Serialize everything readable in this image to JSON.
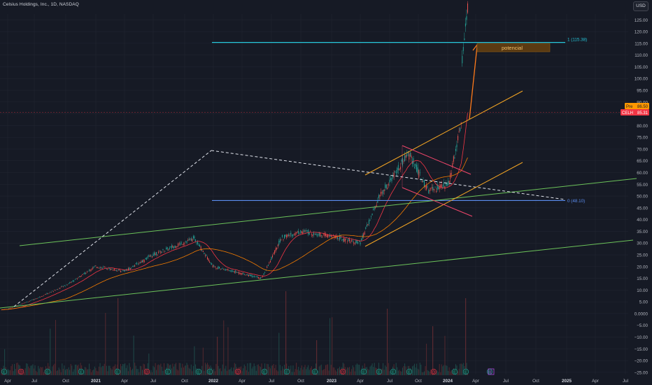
{
  "header": {
    "title": "Celsius Holdings, Inc., 1D, NASDAQ"
  },
  "currency_button": "USD",
  "colors": {
    "background": "#161a25",
    "axis_text": "#b2b5be",
    "grid": "#232733",
    "fib_top": "#26c6da",
    "fib_zero": "#5b8def",
    "green_channel": "#6cc35a",
    "orange_channel": "#f5a623",
    "pink_flag": "#f2466b",
    "dashed": "#e0e3eb",
    "candle_up": "#26a69a",
    "candle_down": "#ef5350",
    "ma_short": "#f23645",
    "ma_long": "#f57c00",
    "projection": "#ff7a1a"
  },
  "chart_data": {
    "type": "candlestick",
    "title": "Celsius Holdings, Inc., 1D, NASDAQ",
    "x_axis_labels": [
      "Apr",
      "Jul",
      "Oct",
      "2021",
      "Apr",
      "Jul",
      "Oct",
      "2022",
      "Apr",
      "Jul",
      "Oct",
      "2023",
      "Apr",
      "Jul",
      "Oct",
      "2024",
      "Apr",
      "Jul",
      "Oct",
      "2025",
      "Apr",
      "Jul"
    ],
    "y_axis_labels": [
      "125.00",
      "120.00",
      "115.00",
      "110.00",
      "105.00",
      "100.00",
      "95.00",
      "90.00",
      "85.00",
      "80.00",
      "75.00",
      "70.00",
      "65.00",
      "60.00",
      "55.00",
      "50.00",
      "45.00",
      "40.00",
      "35.00",
      "30.00",
      "25.00",
      "20.00",
      "15.00",
      "10.00",
      "5.00",
      "0.0000",
      "−5.00",
      "−10.00",
      "−15.00",
      "−20.00",
      "−25.00"
    ],
    "ylim": [
      -25,
      125
    ],
    "scale": "linear",
    "price_series": {
      "name": "CELH",
      "approx_closes": [
        {
          "date": "2020-04",
          "value": 2
        },
        {
          "date": "2020-07",
          "value": 6
        },
        {
          "date": "2020-10",
          "value": 12
        },
        {
          "date": "2021-01",
          "value": 20
        },
        {
          "date": "2021-04",
          "value": 18
        },
        {
          "date": "2021-07",
          "value": 25
        },
        {
          "date": "2021-11",
          "value": 32
        },
        {
          "date": "2022-01",
          "value": 20
        },
        {
          "date": "2022-04",
          "value": 17
        },
        {
          "date": "2022-06",
          "value": 15
        },
        {
          "date": "2022-08",
          "value": 32
        },
        {
          "date": "2022-10",
          "value": 35
        },
        {
          "date": "2023-01",
          "value": 33
        },
        {
          "date": "2023-04",
          "value": 30
        },
        {
          "date": "2023-06",
          "value": 50
        },
        {
          "date": "2023-09",
          "value": 68
        },
        {
          "date": "2023-11",
          "value": 52
        },
        {
          "date": "2024-01",
          "value": 55
        },
        {
          "date": "2024-03",
          "value": 85
        }
      ]
    },
    "price_labels": [
      {
        "label": "Pre",
        "value": "86.50"
      },
      {
        "label": "CELH",
        "value": "85.31"
      }
    ],
    "annotations": {
      "fib_levels": [
        {
          "label": "1 (115.38)",
          "value": 115.38
        },
        {
          "label": "0 (48.10)",
          "value": 48.1
        }
      ],
      "target_box": "potencial"
    },
    "volume_markers": [
      "E",
      "D",
      "E",
      "E",
      "E",
      "D",
      "E",
      "E",
      "E",
      "D",
      "E",
      "E",
      "E",
      "D",
      "E",
      "E",
      "E",
      "E",
      "D",
      "E",
      "E",
      "E",
      "D",
      "E",
      "E"
    ],
    "grid": false,
    "legend": "none"
  }
}
